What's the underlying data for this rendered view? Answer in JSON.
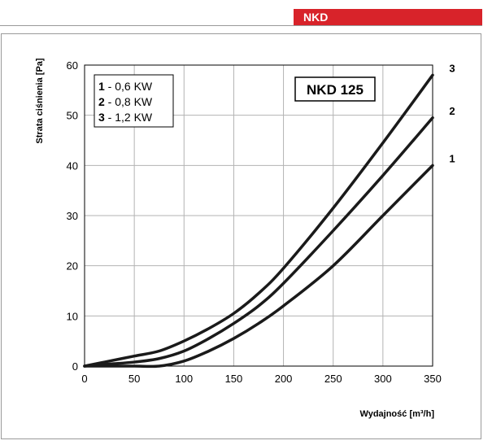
{
  "header": {
    "badge_label": "NKD",
    "badge_color": "#d8232a"
  },
  "chart_data": {
    "type": "line",
    "title": "NKD 125",
    "xlabel": "Wydajność [m³/h]",
    "ylabel": "Strata ciśnienia [Pa]",
    "xlim": [
      0,
      350
    ],
    "ylim": [
      0,
      60
    ],
    "xticks": [
      0,
      50,
      100,
      150,
      200,
      250,
      300,
      350
    ],
    "yticks": [
      0,
      10,
      20,
      30,
      40,
      50,
      60
    ],
    "grid": true,
    "legend_placement": "top-left",
    "legend": [
      {
        "num": "1",
        "text": " - 0,6 KW"
      },
      {
        "num": "2",
        "text": " - 0,8 KW"
      },
      {
        "num": "3",
        "text": " - 1,2 KW"
      }
    ],
    "series": [
      {
        "name": "1",
        "label": "1",
        "x": [
          0,
          25,
          50,
          75,
          100,
          125,
          150,
          175,
          200,
          250,
          300,
          350
        ],
        "y": [
          0,
          0,
          0,
          0,
          1,
          3,
          5.5,
          8.5,
          12,
          20,
          30,
          40
        ]
      },
      {
        "name": "2",
        "label": "2",
        "x": [
          0,
          25,
          50,
          75,
          100,
          125,
          150,
          175,
          200,
          250,
          300,
          350
        ],
        "y": [
          0,
          0.4,
          0.8,
          1.5,
          3,
          5.5,
          8.5,
          12,
          16.5,
          27,
          38,
          49.5
        ]
      },
      {
        "name": "3",
        "label": "3",
        "x": [
          0,
          25,
          50,
          75,
          100,
          125,
          150,
          175,
          200,
          250,
          300,
          350
        ],
        "y": [
          0,
          1,
          2,
          3,
          5,
          7.5,
          10.5,
          14.5,
          19.5,
          31.5,
          44.5,
          58
        ]
      }
    ]
  }
}
